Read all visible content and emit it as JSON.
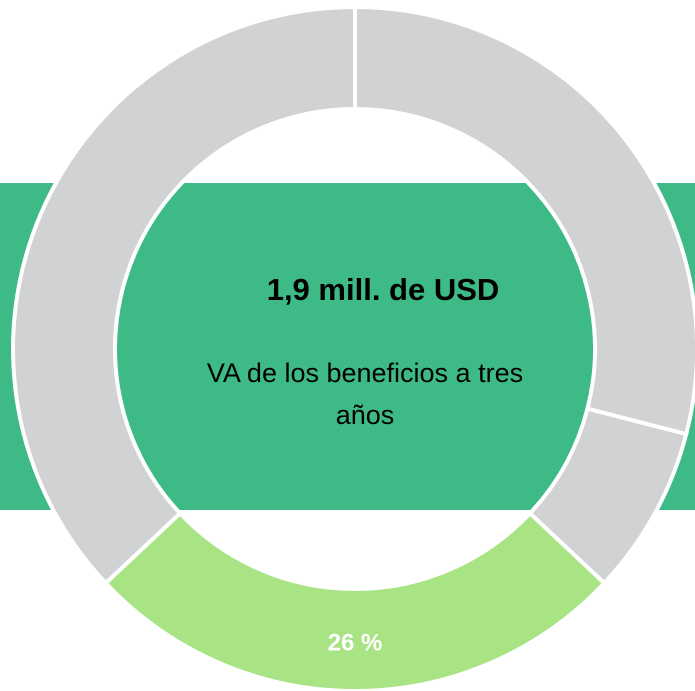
{
  "chart_data": {
    "type": "donut",
    "title": "1,9 mill. de USD",
    "subtitle": "VA de los beneficios a tres años",
    "categories": [
      null,
      null,
      null,
      null
    ],
    "values": [
      29,
      8,
      26,
      37
    ],
    "value_labels": [
      null,
      null,
      "26 %",
      null
    ],
    "colors": [
      "#d1d2d4",
      "#d1d2d4",
      "#a8e384",
      "#d1d2d4"
    ],
    "band_color": "#3dba85"
  }
}
